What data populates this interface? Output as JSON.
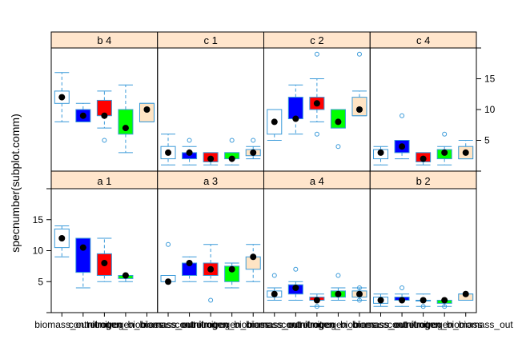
{
  "chart_data": {
    "type": "boxplot-trellis",
    "ylabel": "specnumber(subplot.comm)",
    "categories": [
      "biomass_out",
      "control",
      "nitrogen",
      "nitrogen_biomass",
      "nitrogen_biomass_out"
    ],
    "category_tick_labels": [
      "biomass_out",
      "control",
      "nitrogen",
      "nitrogen_biomass",
      "nitrogen_biomass_out"
    ],
    "category_colors": [
      "#ffffff",
      "#0000ff",
      "#ff0000",
      "#00ff00",
      "#ffe4c4"
    ],
    "ylim": [
      0,
      20
    ],
    "yticks": [
      5,
      10,
      15
    ],
    "yticks_left_rows": [
      "bottom"
    ],
    "yticks_right_rows": [
      "top"
    ],
    "grid": false,
    "layout": {
      "rows": 2,
      "cols": 4
    },
    "panels": [
      {
        "label": "b 4",
        "row": 0,
        "col": 0,
        "boxes": [
          {
            "cat": 0,
            "q1": 11,
            "q3": 13,
            "median": 12,
            "wlo": 8,
            "whi": 16,
            "mean": 12,
            "outliers": []
          },
          {
            "cat": 1,
            "q1": 8,
            "q3": 10,
            "median": 9,
            "wlo": 8,
            "whi": 11,
            "mean": 9,
            "outliers": []
          },
          {
            "cat": 2,
            "q1": 9,
            "q3": 11.5,
            "median": 9,
            "wlo": 7,
            "whi": 13,
            "mean": 9,
            "outliers": [
              5
            ]
          },
          {
            "cat": 3,
            "q1": 6,
            "q3": 10,
            "median": 7,
            "wlo": 3,
            "whi": 14,
            "mean": 7,
            "outliers": []
          },
          {
            "cat": 4,
            "q1": 8,
            "q3": 11,
            "median": 10,
            "wlo": 8,
            "whi": 11,
            "mean": 10,
            "outliers": []
          }
        ]
      },
      {
        "label": "c 1",
        "row": 0,
        "col": 1,
        "boxes": [
          {
            "cat": 0,
            "q1": 2,
            "q3": 4,
            "median": 3,
            "wlo": 1,
            "whi": 6,
            "mean": 3,
            "outliers": []
          },
          {
            "cat": 1,
            "q1": 2,
            "q3": 3,
            "median": 3,
            "wlo": 1,
            "whi": 4,
            "mean": 3,
            "outliers": [
              5
            ]
          },
          {
            "cat": 2,
            "q1": 1.5,
            "q3": 3,
            "median": 2,
            "wlo": 1,
            "whi": 3,
            "mean": 2,
            "outliers": []
          },
          {
            "cat": 3,
            "q1": 2,
            "q3": 3,
            "median": 2,
            "wlo": 1,
            "whi": 3,
            "mean": 2,
            "outliers": [
              5
            ]
          },
          {
            "cat": 4,
            "q1": 2.5,
            "q3": 3.5,
            "median": 3,
            "wlo": 2,
            "whi": 4,
            "mean": 3,
            "outliers": [
              5
            ]
          }
        ]
      },
      {
        "label": "c 2",
        "row": 0,
        "col": 2,
        "boxes": [
          {
            "cat": 0,
            "q1": 6,
            "q3": 10,
            "median": 8,
            "wlo": 5,
            "whi": 10,
            "mean": 8,
            "outliers": []
          },
          {
            "cat": 1,
            "q1": 8.5,
            "q3": 12,
            "median": 8.5,
            "wlo": 6,
            "whi": 14,
            "mean": 8.5,
            "outliers": []
          },
          {
            "cat": 2,
            "q1": 10,
            "q3": 12,
            "median": 11,
            "wlo": 8,
            "whi": 15,
            "mean": 11,
            "outliers": [
              6,
              19
            ]
          },
          {
            "cat": 3,
            "q1": 7,
            "q3": 10,
            "median": 8,
            "wlo": 7,
            "whi": 10,
            "mean": 8,
            "outliers": [
              4
            ]
          },
          {
            "cat": 4,
            "q1": 9,
            "q3": 12,
            "median": 10,
            "wlo": 9,
            "whi": 13,
            "mean": 10,
            "outliers": [
              19
            ]
          }
        ]
      },
      {
        "label": "c 4",
        "row": 0,
        "col": 3,
        "boxes": [
          {
            "cat": 0,
            "q1": 2,
            "q3": 3.5,
            "median": 3,
            "wlo": 1,
            "whi": 4,
            "mean": 3,
            "outliers": []
          },
          {
            "cat": 1,
            "q1": 3,
            "q3": 5,
            "median": 4,
            "wlo": 2,
            "whi": 5,
            "mean": 4,
            "outliers": [
              9
            ]
          },
          {
            "cat": 2,
            "q1": 1.5,
            "q3": 3,
            "median": 2,
            "wlo": 1,
            "whi": 3,
            "mean": 2,
            "outliers": []
          },
          {
            "cat": 3,
            "q1": 2,
            "q3": 3.5,
            "median": 3,
            "wlo": 1,
            "whi": 4,
            "mean": 3,
            "outliers": [
              6
            ]
          },
          {
            "cat": 4,
            "q1": 2,
            "q3": 4,
            "median": 3,
            "wlo": 2,
            "whi": 5,
            "mean": 3,
            "outliers": []
          }
        ]
      },
      {
        "label": "a 1",
        "row": 1,
        "col": 0,
        "boxes": [
          {
            "cat": 0,
            "q1": 10.5,
            "q3": 13.5,
            "median": 12,
            "wlo": 9,
            "whi": 14,
            "mean": 12,
            "outliers": []
          },
          {
            "cat": 1,
            "q1": 6.5,
            "q3": 12,
            "median": 10.5,
            "wlo": 4,
            "whi": 12,
            "mean": 10.5,
            "outliers": []
          },
          {
            "cat": 2,
            "q1": 6,
            "q3": 9.5,
            "median": 8,
            "wlo": 5,
            "whi": 12,
            "mean": 8,
            "outliers": []
          },
          {
            "cat": 3,
            "q1": 5.5,
            "q3": 6,
            "median": 6,
            "wlo": 5,
            "whi": 6,
            "mean": 6,
            "outliers": []
          }
        ]
      },
      {
        "label": "a 3",
        "row": 1,
        "col": 1,
        "boxes": [
          {
            "cat": 0,
            "q1": 5,
            "q3": 6,
            "median": 5,
            "wlo": 5,
            "whi": 6,
            "mean": 5,
            "outliers": [
              11
            ]
          },
          {
            "cat": 1,
            "q1": 6,
            "q3": 8,
            "median": 8,
            "wlo": 5,
            "whi": 9,
            "mean": 8,
            "outliers": []
          },
          {
            "cat": 2,
            "q1": 6,
            "q3": 8,
            "median": 7,
            "wlo": 5,
            "whi": 11,
            "mean": 7,
            "outliers": [
              2
            ]
          },
          {
            "cat": 3,
            "q1": 5,
            "q3": 7.5,
            "median": 7,
            "wlo": 4,
            "whi": 8,
            "mean": 7,
            "outliers": []
          },
          {
            "cat": 4,
            "q1": 7,
            "q3": 9,
            "median": 9,
            "wlo": 5,
            "whi": 11,
            "mean": 9,
            "outliers": []
          }
        ]
      },
      {
        "label": "a 4",
        "row": 1,
        "col": 2,
        "boxes": [
          {
            "cat": 0,
            "q1": 2.5,
            "q3": 3.5,
            "median": 3,
            "wlo": 2,
            "whi": 4,
            "mean": 3,
            "outliers": [
              6
            ]
          },
          {
            "cat": 1,
            "q1": 3,
            "q3": 4.5,
            "median": 4,
            "wlo": 2,
            "whi": 5,
            "mean": 4,
            "outliers": [
              7
            ]
          },
          {
            "cat": 2,
            "q1": 2,
            "q3": 2.5,
            "median": 2,
            "wlo": 1,
            "whi": 3,
            "mean": 2,
            "outliers": [
              1
            ]
          },
          {
            "cat": 3,
            "q1": 2.5,
            "q3": 3.5,
            "median": 3,
            "wlo": 2,
            "whi": 4,
            "mean": 3,
            "outliers": [
              6
            ]
          },
          {
            "cat": 4,
            "q1": 2.5,
            "q3": 3.5,
            "median": 3,
            "wlo": 2,
            "whi": 4,
            "mean": 3,
            "outliers": [
              2,
              4
            ]
          }
        ]
      },
      {
        "label": "b 2",
        "row": 1,
        "col": 3,
        "boxes": [
          {
            "cat": 0,
            "q1": 1.5,
            "q3": 2.5,
            "median": 2,
            "wlo": 1,
            "whi": 3,
            "mean": 2,
            "outliers": []
          },
          {
            "cat": 1,
            "q1": 2,
            "q3": 2.5,
            "median": 2,
            "wlo": 1,
            "whi": 3,
            "mean": 2,
            "outliers": [
              4
            ]
          },
          {
            "cat": 2,
            "q1": 2,
            "q3": 2,
            "median": 2,
            "wlo": 1,
            "whi": 3,
            "mean": 2,
            "outliers": [
              1
            ]
          },
          {
            "cat": 3,
            "q1": 1.5,
            "q3": 2,
            "median": 2,
            "wlo": 1,
            "whi": 2,
            "mean": 2,
            "outliers": [
              1
            ]
          },
          {
            "cat": 4,
            "q1": 2,
            "q3": 3,
            "median": 3,
            "wlo": 2,
            "whi": 3,
            "mean": 3,
            "outliers": []
          }
        ]
      }
    ]
  }
}
